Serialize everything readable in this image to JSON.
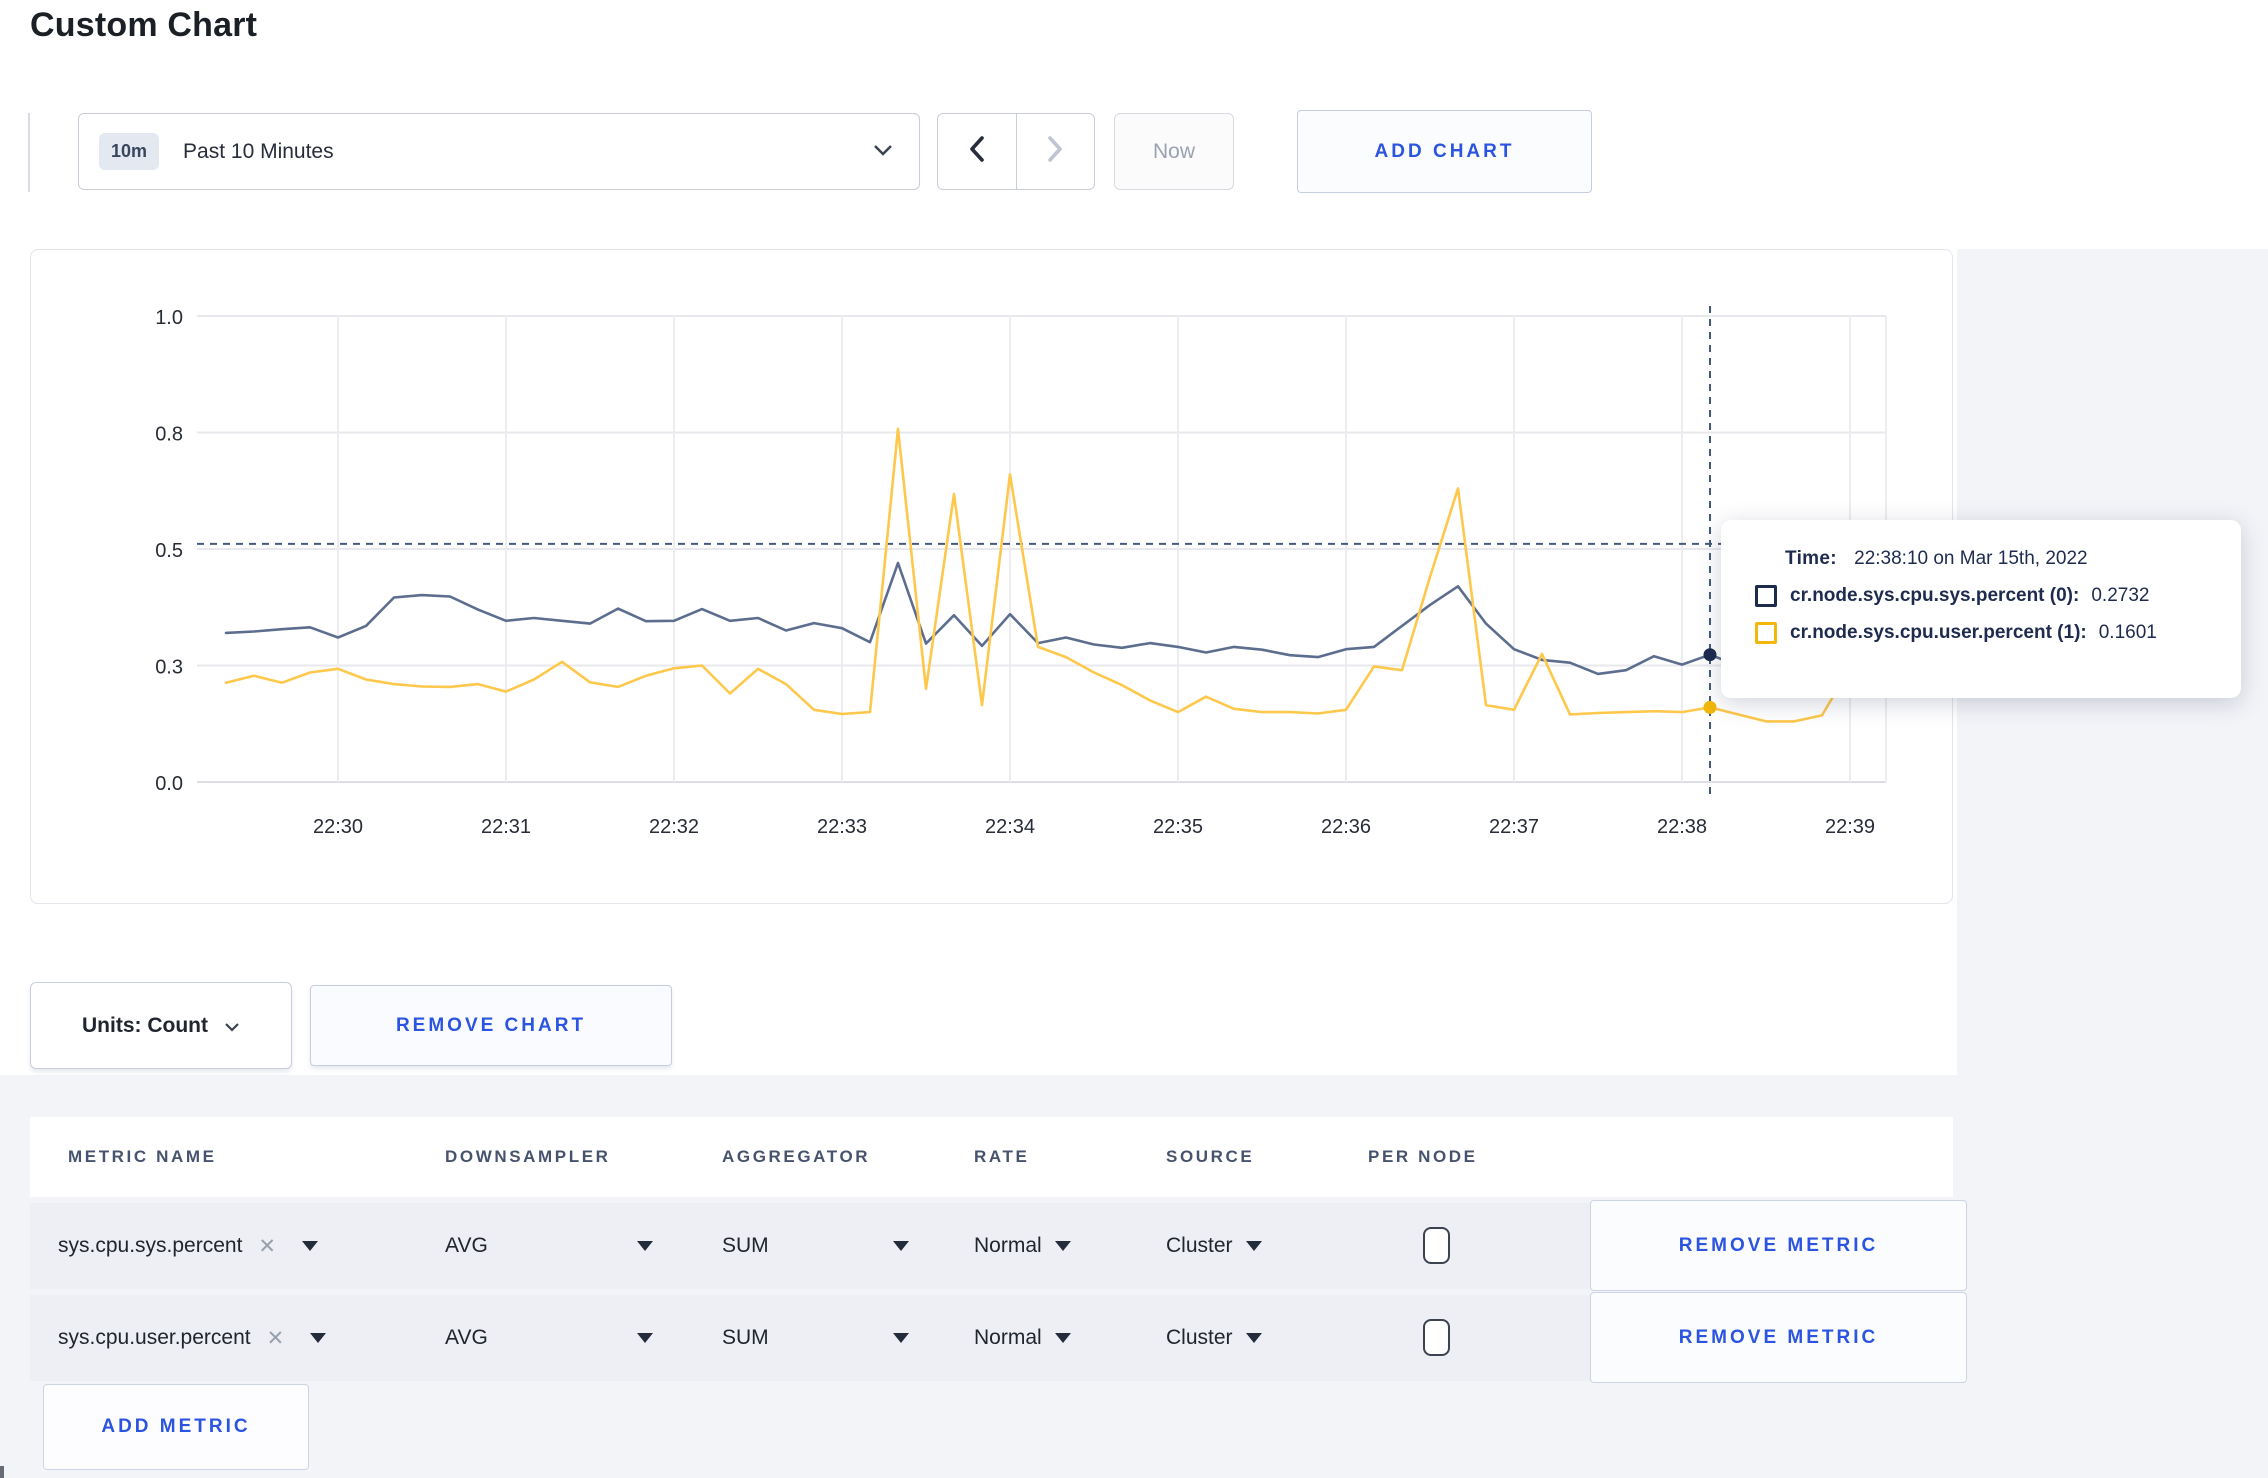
{
  "page": {
    "title": "Custom Chart"
  },
  "toolbar": {
    "time_range": {
      "badge": "10m",
      "label": "Past 10 Minutes"
    },
    "now_label": "Now",
    "add_chart_label": "ADD CHART"
  },
  "chart_data": {
    "type": "line",
    "title": "",
    "xlabel": "",
    "ylabel": "",
    "ylim": [
      0,
      1
    ],
    "grid": true,
    "legend_position": "tooltip",
    "y_ticks": [
      {
        "value": 0,
        "label": "0.0"
      },
      {
        "value": 0.25,
        "label": "0.3"
      },
      {
        "value": 0.5,
        "label": "0.5"
      },
      {
        "value": 0.75,
        "label": "0.8"
      },
      {
        "value": 1,
        "label": "1.0"
      }
    ],
    "x_ticks": [
      "22:30",
      "22:31",
      "22:32",
      "22:33",
      "22:34",
      "22:35",
      "22:36",
      "22:37",
      "22:38",
      "22:39"
    ],
    "x": [
      "22:29:20",
      "22:29:30",
      "22:29:40",
      "22:29:50",
      "22:30:00",
      "22:30:10",
      "22:30:20",
      "22:30:30",
      "22:30:40",
      "22:30:50",
      "22:31:00",
      "22:31:10",
      "22:31:20",
      "22:31:30",
      "22:31:40",
      "22:31:50",
      "22:32:00",
      "22:32:10",
      "22:32:20",
      "22:32:30",
      "22:32:40",
      "22:32:50",
      "22:33:00",
      "22:33:10",
      "22:33:20",
      "22:33:30",
      "22:33:40",
      "22:33:50",
      "22:34:00",
      "22:34:10",
      "22:34:20",
      "22:34:30",
      "22:34:40",
      "22:34:50",
      "22:35:00",
      "22:35:10",
      "22:35:20",
      "22:35:30",
      "22:35:40",
      "22:35:50",
      "22:36:00",
      "22:36:10",
      "22:36:20",
      "22:36:30",
      "22:36:40",
      "22:36:50",
      "22:37:00",
      "22:37:10",
      "22:37:20",
      "22:37:30",
      "22:37:40",
      "22:37:50",
      "22:38:00",
      "22:38:10",
      "22:38:20",
      "22:38:30",
      "22:38:40",
      "22:38:50",
      "22:39:00",
      "22:39:10"
    ],
    "series": [
      {
        "name": "cr.node.sys.cpu.sys.percent",
        "color": "#5c6d8e",
        "values": [
          0.32,
          0.323,
          0.328,
          0.332,
          0.31,
          0.335,
          0.396,
          0.401,
          0.398,
          0.37,
          0.346,
          0.352,
          0.346,
          0.34,
          0.372,
          0.345,
          0.346,
          0.371,
          0.346,
          0.352,
          0.325,
          0.341,
          0.33,
          0.3,
          0.47,
          0.297,
          0.358,
          0.292,
          0.36,
          0.298,
          0.31,
          0.295,
          0.288,
          0.298,
          0.29,
          0.278,
          0.29,
          0.284,
          0.272,
          0.268,
          0.285,
          0.29,
          0.335,
          0.38,
          0.42,
          0.34,
          0.285,
          0.262,
          0.256,
          0.232,
          0.24,
          0.27,
          0.252,
          0.2732,
          0.25,
          0.26,
          0.27,
          0.275,
          0.29,
          0.31
        ]
      },
      {
        "name": "cr.node.sys.cpu.user.percent",
        "color": "#fdc84b",
        "values": [
          0.213,
          0.228,
          0.213,
          0.235,
          0.243,
          0.22,
          0.21,
          0.205,
          0.204,
          0.21,
          0.194,
          0.22,
          0.258,
          0.214,
          0.204,
          0.228,
          0.244,
          0.25,
          0.19,
          0.243,
          0.21,
          0.155,
          0.146,
          0.15,
          0.758,
          0.2,
          0.618,
          0.165,
          0.66,
          0.29,
          0.268,
          0.235,
          0.208,
          0.175,
          0.15,
          0.183,
          0.157,
          0.15,
          0.15,
          0.147,
          0.155,
          0.248,
          0.24,
          0.44,
          0.63,
          0.165,
          0.155,
          0.275,
          0.145,
          0.148,
          0.15,
          0.152,
          0.15,
          0.1601,
          0.145,
          0.13,
          0.13,
          0.143,
          0.245,
          0.225
        ]
      }
    ]
  },
  "tooltip": {
    "time_label": "Time:",
    "time_value": "22:38:10 on Mar 15th, 2022",
    "crosshair": {
      "time": "22:38:10",
      "hline_value": 0.511
    },
    "rows": [
      {
        "swatch_color": "#1b2b4e",
        "label": "cr.node.sys.cpu.sys.percent (0):",
        "value": "0.2732"
      },
      {
        "swatch_color": "#f2b70a",
        "label": "cr.node.sys.cpu.user.percent (1):",
        "value": "0.1601"
      }
    ]
  },
  "units_row": {
    "units_label": "Units: Count",
    "remove_chart_label": "REMOVE CHART"
  },
  "metrics_table": {
    "headers": [
      "METRIC NAME",
      "DOWNSAMPLER",
      "AGGREGATOR",
      "RATE",
      "SOURCE",
      "PER NODE"
    ],
    "rows": [
      {
        "name": "sys.cpu.sys.percent",
        "downsampler": "AVG",
        "aggregator": "SUM",
        "rate": "Normal",
        "source": "Cluster",
        "per_node_checked": false,
        "remove_label": "REMOVE METRIC"
      },
      {
        "name": "sys.cpu.user.percent",
        "downsampler": "AVG",
        "aggregator": "SUM",
        "rate": "Normal",
        "source": "Cluster",
        "per_node_checked": false,
        "remove_label": "REMOVE METRIC"
      }
    ],
    "add_metric_label": "ADD METRIC"
  },
  "icons": {
    "close": "✕"
  },
  "colors": {
    "accent_blue": "#2b55e0",
    "line_sys": "#5c6d8e",
    "line_user": "#fdc84b",
    "swatch_sys": "#1b2b4e",
    "swatch_user": "#f2b70a",
    "crosshair": "#44597c",
    "grid": "#e8e9ed",
    "page_gray": "#f3f4f8",
    "row_gray": "#edeff4"
  }
}
